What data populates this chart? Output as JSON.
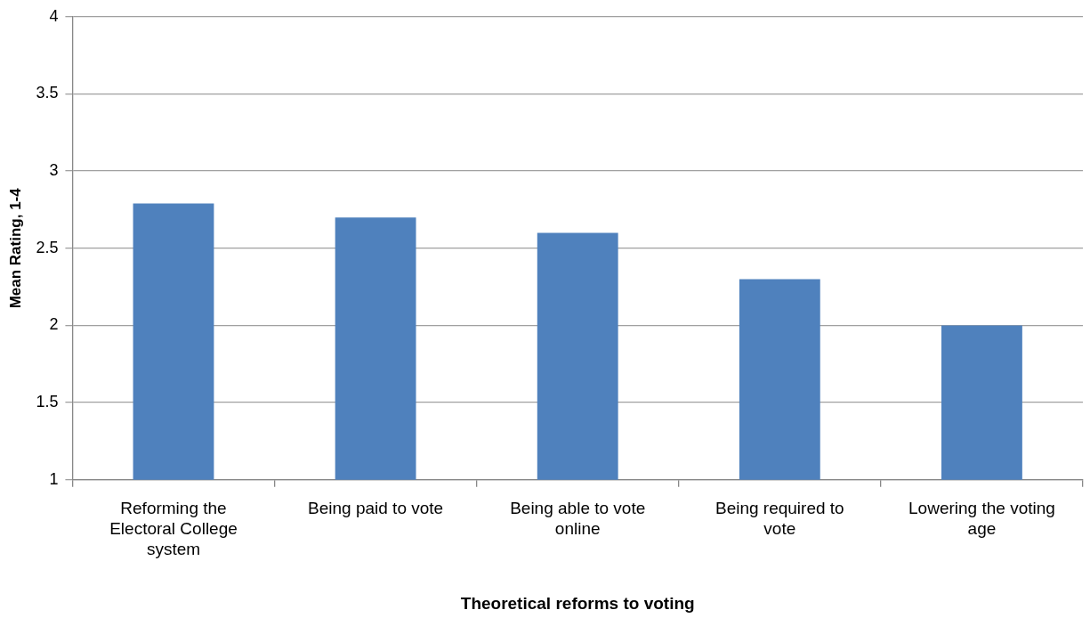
{
  "chart_data": {
    "type": "bar",
    "xlabel": "Theoretical reforms to voting",
    "ylabel": "Mean Rating, 1-4",
    "categories": [
      "Reforming the Electoral College system",
      "Being paid to vote",
      "Being able to vote online",
      "Being required to vote",
      "Lowering the voting age"
    ],
    "values": [
      2.79,
      2.7,
      2.6,
      2.3,
      2.0
    ],
    "color": "#4f81bd",
    "ylim": [
      1,
      4
    ],
    "yticks": [
      1,
      1.5,
      2,
      2.5,
      3,
      3.5,
      4
    ],
    "grid": "y"
  }
}
